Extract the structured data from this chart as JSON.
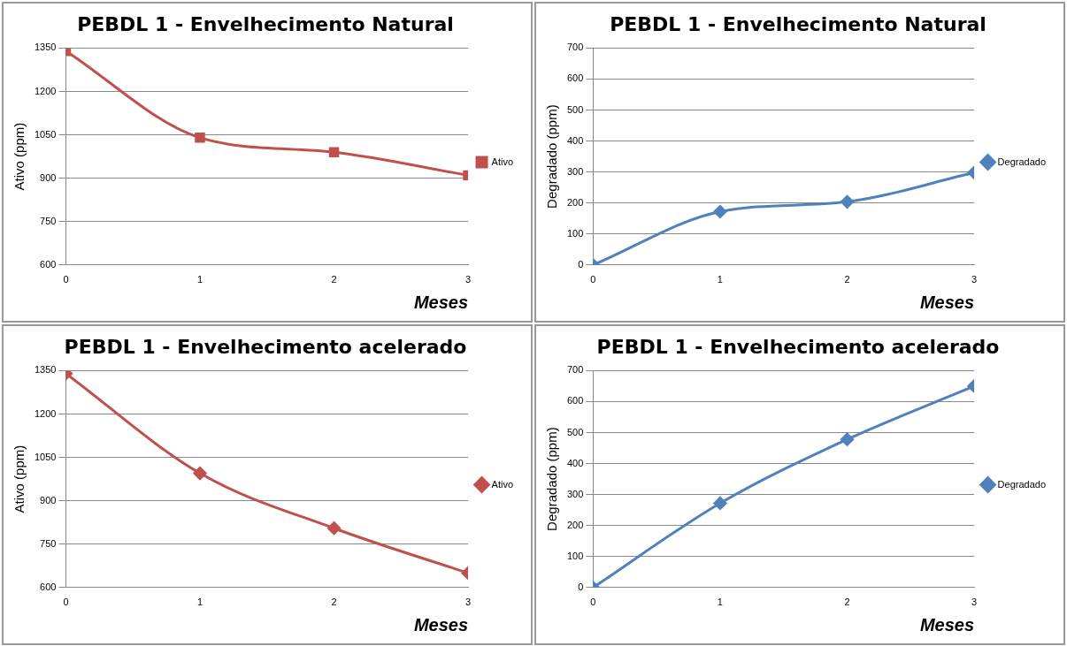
{
  "chart_data": [
    {
      "type": "line",
      "title": "PEBDL 1 - Envelhecimento Natural",
      "xlabel": "Meses",
      "ylabel": "Ativo (ppm)",
      "x": [
        0,
        1,
        2,
        3
      ],
      "xlim": [
        0,
        3
      ],
      "xticks": [
        0,
        1,
        2,
        3
      ],
      "ylim": [
        600,
        1350
      ],
      "yticks": [
        600,
        750,
        900,
        1050,
        1200,
        1350
      ],
      "grid": "y",
      "legend": "right",
      "marker": "square",
      "series": [
        {
          "name": "Ativo",
          "color": "#c0504d",
          "values": [
            1340,
            1040,
            990,
            910
          ]
        }
      ]
    },
    {
      "type": "line",
      "title": "PEBDL 1 - Envelhecimento Natural",
      "xlabel": "Meses",
      "ylabel": "Degradado (ppm)",
      "x": [
        0,
        1,
        2,
        3
      ],
      "xlim": [
        0,
        3
      ],
      "xticks": [
        0,
        1,
        2,
        3
      ],
      "ylim": [
        0,
        700
      ],
      "yticks": [
        0,
        100,
        200,
        300,
        400,
        500,
        600,
        700
      ],
      "grid": "y",
      "legend": "right",
      "marker": "diamond",
      "series": [
        {
          "name": "Degradado",
          "color": "#4f81bd",
          "values": [
            0,
            172,
            204,
            298
          ]
        }
      ]
    },
    {
      "type": "line",
      "title": "PEBDL 1 - Envelhecimento acelerado",
      "xlabel": "Meses",
      "ylabel": "Ativo (ppm)",
      "x": [
        0,
        1,
        2,
        3
      ],
      "xlim": [
        0,
        3
      ],
      "xticks": [
        0,
        1,
        2,
        3
      ],
      "ylim": [
        600,
        1350
      ],
      "yticks": [
        600,
        750,
        900,
        1050,
        1200,
        1350
      ],
      "grid": "y",
      "legend": "right",
      "marker": "diamond",
      "series": [
        {
          "name": "Ativo",
          "color": "#c0504d",
          "values": [
            1340,
            995,
            805,
            650
          ]
        }
      ]
    },
    {
      "type": "line",
      "title": "PEBDL 1 - Envelhecimento acelerado",
      "xlabel": "Meses",
      "ylabel": "Degradado (ppm)",
      "x": [
        0,
        1,
        2,
        3
      ],
      "xlim": [
        0,
        3
      ],
      "xticks": [
        0,
        1,
        2,
        3
      ],
      "ylim": [
        0,
        700
      ],
      "yticks": [
        0,
        100,
        200,
        300,
        400,
        500,
        600,
        700
      ],
      "grid": "y",
      "legend": "right",
      "marker": "diamond",
      "series": [
        {
          "name": "Degradado",
          "color": "#4f81bd",
          "values": [
            0,
            272,
            478,
            650
          ]
        }
      ]
    }
  ]
}
